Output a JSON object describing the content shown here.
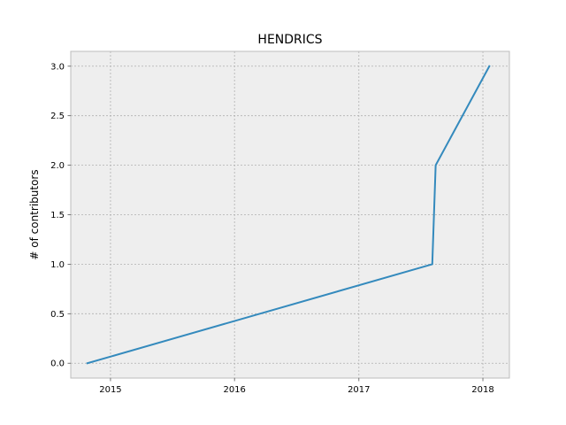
{
  "chart_data": {
    "type": "line",
    "title": "HENDRICS",
    "xlabel": "",
    "ylabel": "# of contributors",
    "x_is_date": true,
    "xlim": [
      "2014-09-06",
      "2018-03-20"
    ],
    "ylim": [
      -0.15,
      3.15
    ],
    "x_ticks": [
      {
        "date": "2015-01-01",
        "label": "2015"
      },
      {
        "date": "2016-01-01",
        "label": "2016"
      },
      {
        "date": "2017-01-01",
        "label": "2017"
      },
      {
        "date": "2018-01-01",
        "label": "2018"
      }
    ],
    "y_ticks": [
      {
        "value": 0.0,
        "label": "0.0"
      },
      {
        "value": 0.5,
        "label": "0.5"
      },
      {
        "value": 1.0,
        "label": "1.0"
      },
      {
        "value": 1.5,
        "label": "1.5"
      },
      {
        "value": 2.0,
        "label": "2.0"
      },
      {
        "value": 2.5,
        "label": "2.5"
      },
      {
        "value": 3.0,
        "label": "3.0"
      }
    ],
    "grid": true,
    "series": [
      {
        "color": "#348abd",
        "points": [
          {
            "x": "2014-10-25",
            "y": 0
          },
          {
            "x": "2017-08-05",
            "y": 1
          },
          {
            "x": "2017-08-15",
            "y": 2
          },
          {
            "x": "2018-01-20",
            "y": 3
          }
        ]
      }
    ]
  },
  "colors": {
    "plot_background": "#eeeeee",
    "axes_edge": "#bcbcbc",
    "line": "#348abd"
  }
}
